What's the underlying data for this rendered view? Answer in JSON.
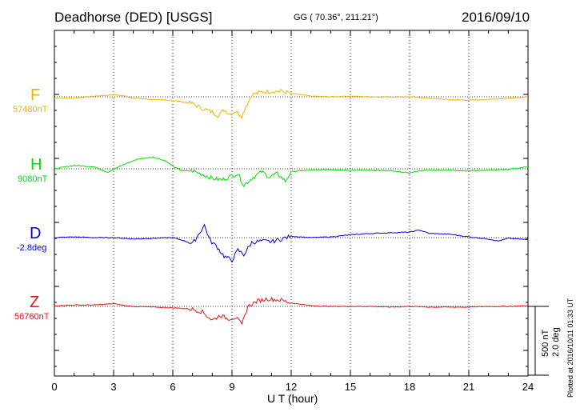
{
  "header": {
    "station": "Deadhorse (DED)  [USGS]",
    "coords": "GG ( 70.36°, 211.21°)",
    "date": "2016/09/10"
  },
  "footer": {
    "plotted": "Plotted at 2016/10/11 01:33 UT"
  },
  "scale_bar": {
    "nt": "500 nT",
    "deg": "2.0 deg"
  },
  "chart_data": {
    "type": "line",
    "xlabel": "U T (hour)",
    "xlim": [
      0,
      24
    ],
    "xticks": [
      0,
      3,
      6,
      9,
      12,
      15,
      18,
      21,
      24
    ],
    "x_minor_step": 1,
    "grid": "vertical dotted at every 3 hours",
    "panel_offset_units": 1.0,
    "series": [
      {
        "name": "F",
        "baseline": "57480nT",
        "color": "#f0b000",
        "points": [
          [
            0,
            -0.02
          ],
          [
            1,
            -0.02
          ],
          [
            2,
            0.01
          ],
          [
            3,
            0.03
          ],
          [
            3.6,
            0.01
          ],
          [
            4,
            -0.02
          ],
          [
            5,
            -0.04
          ],
          [
            5.8,
            -0.05
          ],
          [
            6.4,
            -0.07
          ],
          [
            7,
            -0.1
          ],
          [
            7.5,
            -0.17
          ],
          [
            8,
            -0.22
          ],
          [
            8.3,
            -0.27
          ],
          [
            8.6,
            -0.19
          ],
          [
            8.9,
            -0.25
          ],
          [
            9.2,
            -0.21
          ],
          [
            9.5,
            -0.28
          ],
          [
            9.7,
            -0.14
          ],
          [
            10,
            0.03
          ],
          [
            10.5,
            0.07
          ],
          [
            11,
            0.08
          ],
          [
            11.5,
            0.08
          ],
          [
            12,
            0.05
          ],
          [
            13,
            0.01
          ],
          [
            14,
            0.0
          ],
          [
            15,
            0.01
          ],
          [
            16,
            0.0
          ],
          [
            17,
            0.0
          ],
          [
            18,
            0.0
          ],
          [
            19,
            -0.02
          ],
          [
            20,
            -0.04
          ],
          [
            21,
            -0.05
          ],
          [
            22,
            -0.04
          ],
          [
            23,
            -0.02
          ],
          [
            24,
            0.0
          ]
        ]
      },
      {
        "name": "H",
        "baseline": "9080nT",
        "color": "#00dd00",
        "points": [
          [
            0,
            0.0
          ],
          [
            1,
            0.05
          ],
          [
            2,
            0.03
          ],
          [
            2.7,
            -0.05
          ],
          [
            3.5,
            0.06
          ],
          [
            4.2,
            0.14
          ],
          [
            5,
            0.17
          ],
          [
            5.6,
            0.12
          ],
          [
            6.1,
            0.02
          ],
          [
            6.5,
            -0.03
          ],
          [
            7,
            -0.03
          ],
          [
            7.5,
            -0.08
          ],
          [
            8,
            -0.14
          ],
          [
            8.5,
            -0.16
          ],
          [
            9,
            -0.1
          ],
          [
            9.3,
            -0.07
          ],
          [
            9.6,
            -0.24
          ],
          [
            10,
            -0.14
          ],
          [
            10.5,
            -0.04
          ],
          [
            10.9,
            -0.12
          ],
          [
            11.3,
            -0.07
          ],
          [
            11.7,
            -0.18
          ],
          [
            12,
            -0.04
          ],
          [
            13,
            -0.02
          ],
          [
            14,
            -0.01
          ],
          [
            15,
            -0.02
          ],
          [
            16,
            -0.02
          ],
          [
            17,
            -0.03
          ],
          [
            18,
            -0.06
          ],
          [
            18.5,
            -0.03
          ],
          [
            19,
            -0.02
          ],
          [
            20,
            -0.02
          ],
          [
            21,
            -0.03
          ],
          [
            22,
            -0.02
          ],
          [
            23,
            -0.01
          ],
          [
            24,
            0.03
          ]
        ]
      },
      {
        "name": "D",
        "baseline": "-2.8deg",
        "color": "#0000dd",
        "points": [
          [
            0,
            0.0
          ],
          [
            1,
            0.01
          ],
          [
            2,
            0.0
          ],
          [
            3,
            0.0
          ],
          [
            4,
            -0.02
          ],
          [
            5,
            -0.01
          ],
          [
            6,
            0.0
          ],
          [
            6.5,
            -0.04
          ],
          [
            7,
            -0.09
          ],
          [
            7.6,
            0.18
          ],
          [
            7.9,
            -0.05
          ],
          [
            8.2,
            -0.12
          ],
          [
            8.6,
            -0.27
          ],
          [
            9,
            -0.33
          ],
          [
            9.3,
            -0.18
          ],
          [
            9.6,
            -0.25
          ],
          [
            10,
            -0.07
          ],
          [
            10.5,
            -0.05
          ],
          [
            11,
            -0.06
          ],
          [
            11.5,
            -0.02
          ],
          [
            12,
            0.02
          ],
          [
            13,
            0.0
          ],
          [
            14,
            0.01
          ],
          [
            15,
            0.04
          ],
          [
            16,
            0.06
          ],
          [
            17,
            0.07
          ],
          [
            18,
            0.08
          ],
          [
            18.5,
            0.11
          ],
          [
            19,
            0.06
          ],
          [
            20,
            0.05
          ],
          [
            21,
            0.01
          ],
          [
            22,
            -0.02
          ],
          [
            22.5,
            -0.05
          ],
          [
            23,
            -0.01
          ],
          [
            24,
            -0.03
          ]
        ]
      },
      {
        "name": "Z",
        "baseline": "56760nT",
        "color": "#ee1111",
        "points": [
          [
            0,
            0.01
          ],
          [
            1,
            0.02
          ],
          [
            2,
            0.02
          ],
          [
            3,
            0.04
          ],
          [
            3.6,
            0.01
          ],
          [
            4,
            0.0
          ],
          [
            5,
            -0.01
          ],
          [
            6,
            -0.02
          ],
          [
            7,
            -0.04
          ],
          [
            7.5,
            -0.08
          ],
          [
            8,
            -0.2
          ],
          [
            8.4,
            -0.13
          ],
          [
            8.8,
            -0.18
          ],
          [
            9.2,
            -0.16
          ],
          [
            9.5,
            -0.27
          ],
          [
            9.8,
            0.0
          ],
          [
            10.3,
            0.08
          ],
          [
            10.8,
            0.11
          ],
          [
            11.5,
            0.09
          ],
          [
            12,
            0.05
          ],
          [
            13,
            0.01
          ],
          [
            14,
            0.0
          ],
          [
            15,
            0.0
          ],
          [
            16,
            0.0
          ],
          [
            17,
            -0.01
          ],
          [
            18,
            0.0
          ],
          [
            19,
            -0.01
          ],
          [
            20,
            -0.01
          ],
          [
            21,
            -0.01
          ],
          [
            22,
            0.0
          ],
          [
            23,
            0.0
          ],
          [
            24,
            0.01
          ]
        ]
      }
    ]
  }
}
